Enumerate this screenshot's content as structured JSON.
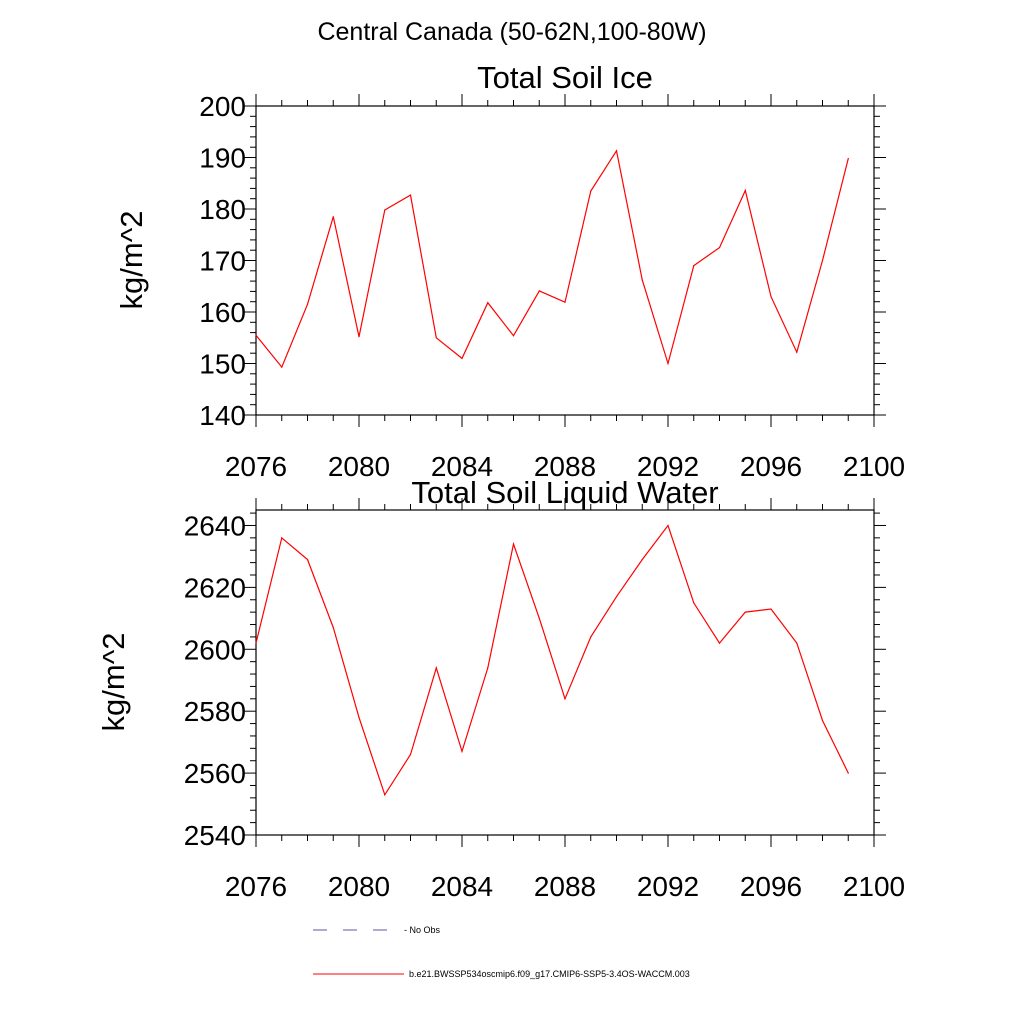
{
  "figure": {
    "suptitle": "Central Canada (50-62N,100-80W)"
  },
  "chart_data": [
    {
      "type": "line",
      "title": "Total Soil Ice",
      "xlabel": "",
      "ylabel": "kg/m^2",
      "xlim": [
        2076,
        2100
      ],
      "ylim": [
        140,
        200
      ],
      "xticks": [
        2076,
        2080,
        2084,
        2088,
        2092,
        2096,
        2100
      ],
      "yticks": [
        140,
        150,
        160,
        170,
        180,
        190,
        200
      ],
      "series": [
        {
          "name": "b.e21.BWSSP534oscmip6.f09_g17.CMIP6-SSP5-3.4OS-WACCM.003",
          "color": "#ff0000",
          "x": [
            2076,
            2077,
            2078,
            2079,
            2080,
            2081,
            2082,
            2083,
            2084,
            2085,
            2086,
            2087,
            2088,
            2089,
            2090,
            2091,
            2092,
            2093,
            2094,
            2095,
            2096,
            2097,
            2098,
            2099
          ],
          "y": [
            155.5,
            149.3,
            161.5,
            178.5,
            155.2,
            179.8,
            182.7,
            155.0,
            151.0,
            161.8,
            155.4,
            164.1,
            161.9,
            183.5,
            191.3,
            166.2,
            150.0,
            169.0,
            172.5,
            183.6,
            163.0,
            152.2,
            170.0,
            189.8
          ]
        }
      ]
    },
    {
      "type": "line",
      "title": "Total Soil Liquid Water",
      "xlabel": "",
      "ylabel": "kg/m^2",
      "xlim": [
        2076,
        2100
      ],
      "ylim": [
        2540,
        2645
      ],
      "xticks": [
        2076,
        2080,
        2084,
        2088,
        2092,
        2096,
        2100
      ],
      "yticks": [
        2540,
        2560,
        2580,
        2600,
        2620,
        2640
      ],
      "series": [
        {
          "name": "b.e21.BWSSP534oscmip6.f09_g17.CMIP6-SSP5-3.4OS-WACCM.003",
          "color": "#ff0000",
          "x": [
            2076,
            2077,
            2078,
            2079,
            2080,
            2081,
            2082,
            2083,
            2084,
            2085,
            2086,
            2087,
            2088,
            2089,
            2090,
            2091,
            2092,
            2093,
            2094,
            2095,
            2096,
            2097,
            2098,
            2099
          ],
          "y": [
            2602,
            2636,
            2629,
            2607,
            2578,
            2553,
            2566,
            2594,
            2567,
            2594,
            2634,
            2610,
            2584,
            2604,
            2617,
            2629,
            2640,
            2615,
            2602,
            2612,
            2613,
            2602,
            2577,
            2560
          ]
        }
      ]
    }
  ],
  "legend": {
    "items": [
      {
        "label": "No Obs",
        "style": "dashed",
        "color": "#5a5aa0"
      },
      {
        "label": "b.e21.BWSSP534oscmip6.f09_g17.CMIP6-SSP5-3.4OS-WACCM.003",
        "style": "solid",
        "color": "#ff0000"
      }
    ]
  }
}
